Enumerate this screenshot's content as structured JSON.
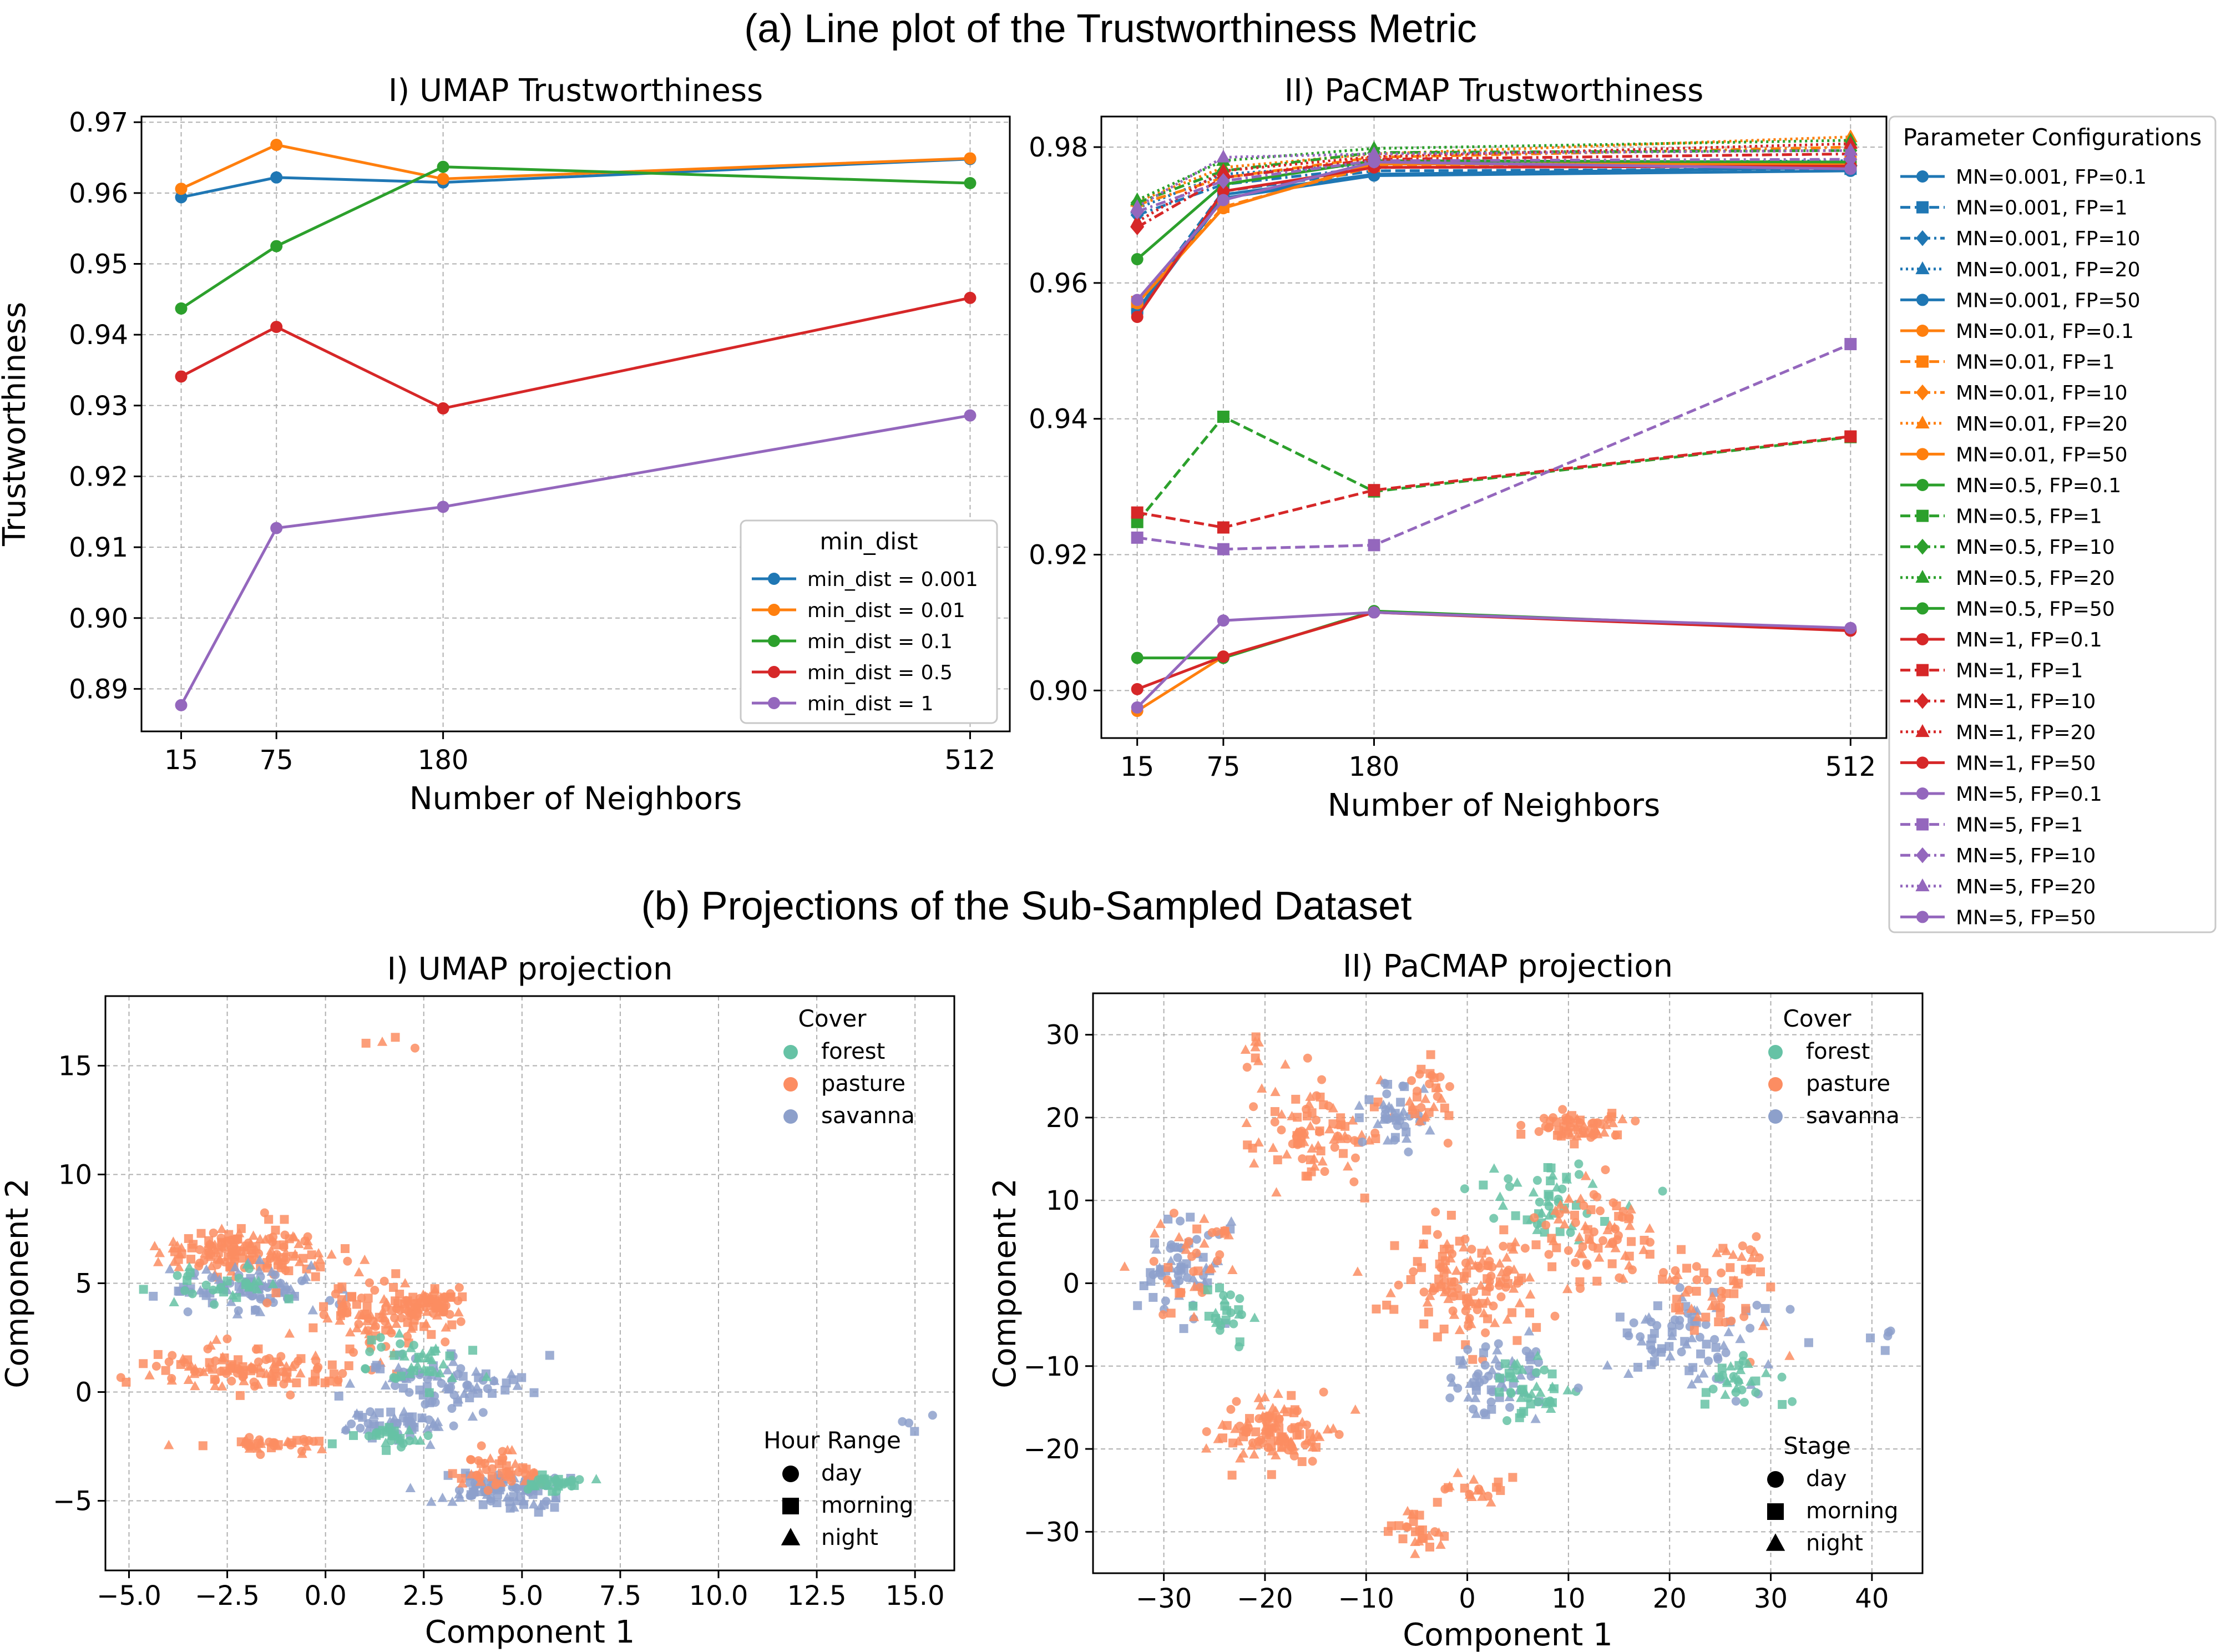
{
  "titles": {
    "section_a": "(a) Line plot of the Trustworthiness Metric",
    "section_b": "(b) Projections of the Sub-Sampled Dataset"
  },
  "colors": {
    "blue": "#1f77b4",
    "orange": "#ff7f0e",
    "green": "#2ca02c",
    "red": "#d62728",
    "purple": "#9467bd",
    "forest": "#66c2a5",
    "pasture": "#fc8d62",
    "savanna": "#8da0cb"
  },
  "chart_data": [
    {
      "id": "umap_trust",
      "type": "line",
      "title": "I) UMAP Trustworthiness",
      "xlabel": "Number of Neighbors",
      "ylabel": "Trustworthiness",
      "x": [
        15,
        75,
        180,
        512
      ],
      "xticks": [
        "15",
        "75",
        "180",
        "512"
      ],
      "xlim": [
        -10,
        537
      ],
      "ylim": [
        0.884,
        0.9708
      ],
      "yticks": [
        "0.89",
        "0.90",
        "0.91",
        "0.92",
        "0.93",
        "0.94",
        "0.95",
        "0.96",
        "0.97"
      ],
      "grid": true,
      "legend": {
        "title": "min_dist",
        "placement": "lower-right"
      },
      "series": [
        {
          "name": "min_dist = 0.001",
          "color": "#1f77b4",
          "values": [
            0.9594,
            0.9622,
            0.9615,
            0.9648
          ]
        },
        {
          "name": "min_dist = 0.01",
          "color": "#ff7f0e",
          "values": [
            0.9606,
            0.9668,
            0.962,
            0.9649
          ]
        },
        {
          "name": "min_dist = 0.1",
          "color": "#2ca02c",
          "values": [
            0.9437,
            0.9525,
            0.9637,
            0.9614
          ]
        },
        {
          "name": "min_dist = 0.5",
          "color": "#d62728",
          "values": [
            0.9341,
            0.9411,
            0.9296,
            0.9452
          ]
        },
        {
          "name": "min_dist = 1",
          "color": "#9467bd",
          "values": [
            0.8877,
            0.9127,
            0.9157,
            0.9286
          ]
        }
      ]
    },
    {
      "id": "pacmap_trust",
      "type": "line",
      "title": "II) PaCMAP Trustworthiness",
      "xlabel": "Number of Neighbors",
      "ylabel": "",
      "x": [
        15,
        75,
        180,
        512
      ],
      "xticks": [
        "15",
        "75",
        "180",
        "512"
      ],
      "xlim": [
        -10,
        537
      ],
      "ylim": [
        0.893,
        0.9845
      ],
      "yticks": [
        "0.90",
        "0.92",
        "0.94",
        "0.96",
        "0.98"
      ],
      "grid": true,
      "legend": {
        "title": "Parameter Configurations",
        "placement": "outside-right"
      },
      "series": [
        {
          "name": "MN=0.001, FP=0.1",
          "color": "#1f77b4",
          "marker": "circle",
          "dash": "solid",
          "values": [
            0.956,
            0.973,
            0.976,
            0.977
          ]
        },
        {
          "name": "MN=0.001, FP=1",
          "color": "#1f77b4",
          "marker": "square",
          "dash": "dashed",
          "values": [
            0.9565,
            0.9735,
            0.9765,
            0.9768
          ]
        },
        {
          "name": "MN=0.001, FP=10",
          "color": "#1f77b4",
          "marker": "diamond",
          "dash": "dashdot",
          "values": [
            0.97,
            0.9745,
            0.977,
            0.9772
          ]
        },
        {
          "name": "MN=0.001, FP=20",
          "color": "#1f77b4",
          "marker": "triangle",
          "dash": "dotted",
          "values": [
            0.971,
            0.976,
            0.9775,
            0.978
          ]
        },
        {
          "name": "MN=0.001, FP=50",
          "color": "#1f77b4",
          "marker": "circle",
          "dash": "solid",
          "values": [
            0.9555,
            0.9725,
            0.9758,
            0.9765
          ]
        },
        {
          "name": "MN=0.01, FP=0.1",
          "color": "#ff7f0e",
          "marker": "circle",
          "dash": "solid",
          "values": [
            0.957,
            0.971,
            0.9775,
            0.9775
          ]
        },
        {
          "name": "MN=0.01, FP=1",
          "color": "#ff7f0e",
          "marker": "square",
          "dash": "dashed",
          "values": [
            0.9572,
            0.9712,
            0.9772,
            0.9778
          ]
        },
        {
          "name": "MN=0.01, FP=10",
          "color": "#ff7f0e",
          "marker": "diamond",
          "dash": "dashdot",
          "values": [
            0.9715,
            0.9755,
            0.9785,
            0.98
          ]
        },
        {
          "name": "MN=0.01, FP=20",
          "color": "#ff7f0e",
          "marker": "triangle",
          "dash": "dotted",
          "values": [
            0.972,
            0.977,
            0.979,
            0.9815
          ]
        },
        {
          "name": "MN=0.01, FP=50",
          "color": "#ff7f0e",
          "marker": "circle",
          "dash": "solid",
          "values": [
            0.897,
            0.905,
            0.9115,
            0.909
          ]
        },
        {
          "name": "MN=0.5, FP=0.1",
          "color": "#2ca02c",
          "marker": "circle",
          "dash": "solid",
          "values": [
            0.9635,
            0.9745,
            0.978,
            0.9778
          ]
        },
        {
          "name": "MN=0.5, FP=1",
          "color": "#2ca02c",
          "marker": "square",
          "dash": "dashed",
          "values": [
            0.9248,
            0.9403,
            0.9293,
            0.9373
          ]
        },
        {
          "name": "MN=0.5, FP=10",
          "color": "#2ca02c",
          "marker": "diamond",
          "dash": "dashdot",
          "values": [
            0.9718,
            0.9765,
            0.9792,
            0.9795
          ]
        },
        {
          "name": "MN=0.5, FP=20",
          "color": "#2ca02c",
          "marker": "triangle",
          "dash": "dotted",
          "values": [
            0.9722,
            0.978,
            0.9798,
            0.981
          ]
        },
        {
          "name": "MN=0.5, FP=50",
          "color": "#2ca02c",
          "marker": "circle",
          "dash": "solid",
          "values": [
            0.9048,
            0.9048,
            0.9117,
            0.909
          ]
        },
        {
          "name": "MN=1, FP=0.1",
          "color": "#d62728",
          "marker": "circle",
          "dash": "solid",
          "values": [
            0.955,
            0.9735,
            0.977,
            0.9772
          ]
        },
        {
          "name": "MN=1, FP=1",
          "color": "#d62728",
          "marker": "square",
          "dash": "dashed",
          "values": [
            0.9262,
            0.924,
            0.9295,
            0.9374
          ]
        },
        {
          "name": "MN=1, FP=10",
          "color": "#d62728",
          "marker": "diamond",
          "dash": "dashdot",
          "values": [
            0.9682,
            0.9755,
            0.9782,
            0.979
          ]
        },
        {
          "name": "MN=1, FP=20",
          "color": "#d62728",
          "marker": "triangle",
          "dash": "dotted",
          "values": [
            0.969,
            0.9765,
            0.9786,
            0.9805
          ]
        },
        {
          "name": "MN=1, FP=50",
          "color": "#d62728",
          "marker": "circle",
          "dash": "solid",
          "values": [
            0.9002,
            0.905,
            0.9115,
            0.9088
          ]
        },
        {
          "name": "MN=5, FP=0.1",
          "color": "#9467bd",
          "marker": "circle",
          "dash": "solid",
          "values": [
            0.9575,
            0.9722,
            0.9778,
            0.9768
          ]
        },
        {
          "name": "MN=5, FP=1",
          "color": "#9467bd",
          "marker": "square",
          "dash": "dashed",
          "values": [
            0.9225,
            0.9208,
            0.9214,
            0.951
          ]
        },
        {
          "name": "MN=5, FP=10",
          "color": "#9467bd",
          "marker": "diamond",
          "dash": "dashdot",
          "values": [
            0.9705,
            0.975,
            0.978,
            0.9782
          ]
        },
        {
          "name": "MN=5, FP=20",
          "color": "#9467bd",
          "marker": "triangle",
          "dash": "dotted",
          "values": [
            0.9712,
            0.9785,
            0.979,
            0.9795
          ]
        },
        {
          "name": "MN=5, FP=50",
          "color": "#9467bd",
          "marker": "circle",
          "dash": "solid",
          "values": [
            0.8975,
            0.9103,
            0.9115,
            0.9092
          ]
        }
      ]
    },
    {
      "id": "umap_proj",
      "type": "scatter",
      "title": "I) UMAP projection",
      "xlabel": "Component 1",
      "ylabel": "Component 2",
      "xlim": [
        -5.6,
        16.0
      ],
      "ylim": [
        -8.2,
        18.2
      ],
      "xticks": [
        -5.0,
        -2.5,
        0.0,
        2.5,
        5.0,
        7.5,
        10.0,
        12.5,
        15.0
      ],
      "xtick_labels": [
        "−5.0",
        "−2.5",
        "0.0",
        "2.5",
        "5.0",
        "7.5",
        "10.0",
        "12.5",
        "15.0"
      ],
      "yticks": [
        -5,
        0,
        5,
        10,
        15
      ],
      "ytick_labels": [
        "−5",
        "0",
        "5",
        "10",
        "15"
      ],
      "grid": true,
      "legend_color": {
        "title": "Cover",
        "entries": [
          "forest",
          "pasture",
          "savanna"
        ],
        "placement": "upper-right"
      },
      "legend_shape": {
        "title": "Hour Range",
        "entries": [
          "day",
          "morning",
          "night"
        ],
        "placement": "lower-right"
      },
      "point_groups": [
        {
          "cover": "pasture",
          "center": [
            -2.0,
            6.5
          ],
          "spread": [
            1.8,
            1.0
          ],
          "count": 150
        },
        {
          "cover": "savanna",
          "center": [
            -2.0,
            4.8
          ],
          "spread": [
            1.6,
            0.8
          ],
          "count": 90
        },
        {
          "cover": "forest",
          "center": [
            -2.2,
            5.0
          ],
          "spread": [
            1.4,
            0.7
          ],
          "count": 30
        },
        {
          "cover": "pasture",
          "center": [
            1.5,
            3.5
          ],
          "spread": [
            1.6,
            1.2
          ],
          "count": 100
        },
        {
          "cover": "pasture",
          "center": [
            2.5,
            4.0
          ],
          "spread": [
            1.0,
            0.6
          ],
          "count": 60
        },
        {
          "cover": "pasture",
          "center": [
            -2.0,
            1.0
          ],
          "spread": [
            2.0,
            0.8
          ],
          "count": 120
        },
        {
          "cover": "savanna",
          "center": [
            3.0,
            0.5
          ],
          "spread": [
            1.8,
            1.0
          ],
          "count": 80
        },
        {
          "cover": "forest",
          "center": [
            2.0,
            1.5
          ],
          "spread": [
            1.5,
            1.0
          ],
          "count": 40
        },
        {
          "cover": "savanna",
          "center": [
            2.0,
            -1.5
          ],
          "spread": [
            1.2,
            0.6
          ],
          "count": 50
        },
        {
          "cover": "forest",
          "center": [
            1.5,
            -2.0
          ],
          "spread": [
            1.0,
            0.5
          ],
          "count": 25
        },
        {
          "cover": "pasture",
          "center": [
            -1.5,
            -2.4
          ],
          "spread": [
            1.5,
            0.3
          ],
          "count": 40
        },
        {
          "cover": "savanna",
          "center": [
            4.5,
            -4.5
          ],
          "spread": [
            1.4,
            0.7
          ],
          "count": 90
        },
        {
          "cover": "pasture",
          "center": [
            4.5,
            -3.5
          ],
          "spread": [
            1.0,
            0.8
          ],
          "count": 50
        },
        {
          "cover": "forest",
          "center": [
            5.8,
            -4.2
          ],
          "spread": [
            0.8,
            0.3
          ],
          "count": 30
        },
        {
          "cover": "pasture",
          "center": [
            1.5,
            16.0
          ],
          "spread": [
            0.8,
            0.6
          ],
          "count": 4
        },
        {
          "cover": "savanna",
          "center": [
            15.0,
            -1.5
          ],
          "spread": [
            0.3,
            0.3
          ],
          "count": 4
        }
      ]
    },
    {
      "id": "pacmap_proj",
      "type": "scatter",
      "title": "II) PaCMAP projection",
      "xlabel": "Component 1",
      "ylabel": "Component 2",
      "xlim": [
        -37,
        45
      ],
      "ylim": [
        -35,
        35
      ],
      "xticks": [
        -30,
        -20,
        -10,
        0,
        10,
        20,
        30,
        40
      ],
      "xtick_labels": [
        "−30",
        "−20",
        "−10",
        "0",
        "10",
        "20",
        "30",
        "40"
      ],
      "yticks": [
        -30,
        -20,
        -10,
        0,
        10,
        20,
        30
      ],
      "ytick_labels": [
        "−30",
        "−20",
        "−10",
        "0",
        "10",
        "20",
        "30"
      ],
      "grid": true,
      "legend_color": {
        "title": "Cover",
        "entries": [
          "forest",
          "pasture",
          "savanna"
        ],
        "placement": "upper-right"
      },
      "legend_shape": {
        "title": "Stage",
        "entries": [
          "day",
          "morning",
          "night"
        ],
        "placement": "lower-right"
      },
      "point_groups": [
        {
          "cover": "pasture",
          "center": [
            -15,
            18
          ],
          "spread": [
            5,
            5
          ],
          "count": 90
        },
        {
          "cover": "savanna",
          "center": [
            -7,
            20
          ],
          "spread": [
            3,
            4
          ],
          "count": 40
        },
        {
          "cover": "pasture",
          "center": [
            -4,
            22
          ],
          "spread": [
            2,
            4
          ],
          "count": 30
        },
        {
          "cover": "savanna",
          "center": [
            -28,
            2
          ],
          "spread": [
            4,
            5
          ],
          "count": 60
        },
        {
          "cover": "pasture",
          "center": [
            -27,
            3
          ],
          "spread": [
            4,
            5
          ],
          "count": 40
        },
        {
          "cover": "forest",
          "center": [
            -24,
            -3
          ],
          "spread": [
            3,
            3
          ],
          "count": 25
        },
        {
          "cover": "pasture",
          "center": [
            -19,
            -18
          ],
          "spread": [
            5,
            3
          ],
          "count": 110
        },
        {
          "cover": "pasture",
          "center": [
            -5,
            -30
          ],
          "spread": [
            2,
            2
          ],
          "count": 25
        },
        {
          "cover": "pasture",
          "center": [
            0,
            -25
          ],
          "spread": [
            3,
            2
          ],
          "count": 20
        },
        {
          "cover": "pasture",
          "center": [
            0,
            0
          ],
          "spread": [
            6,
            6
          ],
          "count": 140
        },
        {
          "cover": "savanna",
          "center": [
            3,
            -12
          ],
          "spread": [
            4,
            4
          ],
          "count": 60
        },
        {
          "cover": "forest",
          "center": [
            6,
            -13
          ],
          "spread": [
            3,
            3
          ],
          "count": 40
        },
        {
          "cover": "pasture",
          "center": [
            11,
            19
          ],
          "spread": [
            4,
            2
          ],
          "count": 60
        },
        {
          "cover": "forest",
          "center": [
            8,
            10
          ],
          "spread": [
            5,
            4
          ],
          "count": 50
        },
        {
          "cover": "pasture",
          "center": [
            12,
            6
          ],
          "spread": [
            6,
            5
          ],
          "count": 80
        },
        {
          "cover": "savanna",
          "center": [
            22,
            -7
          ],
          "spread": [
            6,
            5
          ],
          "count": 80
        },
        {
          "cover": "pasture",
          "center": [
            25,
            0
          ],
          "spread": [
            5,
            5
          ],
          "count": 60
        },
        {
          "cover": "forest",
          "center": [
            27,
            -12
          ],
          "spread": [
            3,
            3
          ],
          "count": 30
        },
        {
          "cover": "savanna",
          "center": [
            40,
            -6
          ],
          "spread": [
            2,
            2
          ],
          "count": 5
        },
        {
          "cover": "pasture",
          "center": [
            -21,
            28
          ],
          "spread": [
            1,
            2
          ],
          "count": 8
        }
      ]
    }
  ]
}
